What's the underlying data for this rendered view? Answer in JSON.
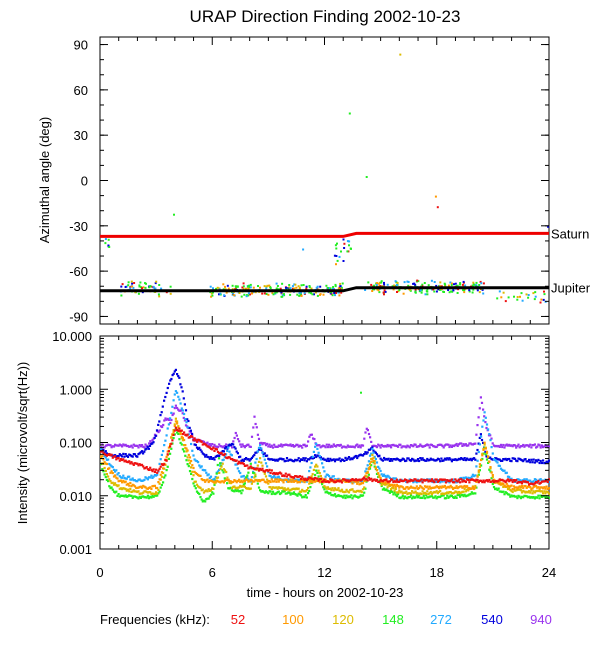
{
  "title": "URAP Direction Finding  2002-10-23",
  "colors": {
    "f52": "#ee1111",
    "f100": "#ff9900",
    "f120": "#ddbb00",
    "f148": "#22ee22",
    "f272": "#22aaff",
    "f540": "#0000dd",
    "f940": "#9933ee",
    "saturn": "#ee0000",
    "jupiter": "#000000"
  },
  "chart_data": [
    {
      "type": "scatter",
      "name": "azimuth",
      "ylabel": "Azimuthal angle (deg)",
      "ylim": [
        -95,
        95
      ],
      "yticks": [
        {
          "v": 90,
          "label": "90"
        },
        {
          "v": 60,
          "label": "60"
        },
        {
          "v": 30,
          "label": "30"
        },
        {
          "v": 0,
          "label": "0"
        },
        {
          "v": -30,
          "label": "-30"
        },
        {
          "v": -60,
          "label": "-60"
        },
        {
          "v": -90,
          "label": "-90"
        }
      ],
      "xlim": [
        0,
        24
      ],
      "reference_lines": [
        {
          "name": "Saturn",
          "color_key": "saturn",
          "points": [
            [
              0,
              -37
            ],
            [
              13,
              -37
            ],
            [
              13.7,
              -35
            ],
            [
              24,
              -35
            ]
          ]
        },
        {
          "name": "Jupiter",
          "color_key": "jupiter",
          "points": [
            [
              0,
              -73
            ],
            [
              13,
              -73
            ],
            [
              13.7,
              -71
            ],
            [
              24,
              -71
            ]
          ]
        }
      ],
      "point_clusters": [
        {
          "x0": 0.2,
          "x1": 0.5,
          "y": -42,
          "spread": 6,
          "n": 6
        },
        {
          "x0": 0.8,
          "x1": 3.8,
          "y": -71,
          "spread": 6,
          "n": 60
        },
        {
          "x0": 5.8,
          "x1": 13.0,
          "y": -72,
          "spread": 5,
          "n": 240
        },
        {
          "x0": 14.0,
          "x1": 20.5,
          "y": -70,
          "spread": 5,
          "n": 220
        },
        {
          "x0": 12.5,
          "x1": 13.5,
          "y": -47,
          "spread": 10,
          "n": 20
        },
        {
          "x0": 21.0,
          "x1": 23.8,
          "y": -76,
          "spread": 5,
          "n": 25
        }
      ],
      "outliers": [
        {
          "x": 3.9,
          "y": -22
        },
        {
          "x": 13.3,
          "y": 45
        },
        {
          "x": 14.2,
          "y": 3
        },
        {
          "x": 16.0,
          "y": 84
        },
        {
          "x": 17.9,
          "y": -10
        },
        {
          "x": 18.0,
          "y": -17
        },
        {
          "x": 10.8,
          "y": -45
        },
        {
          "x": 23.9,
          "y": -30
        }
      ]
    },
    {
      "type": "line",
      "name": "intensity",
      "ylabel": "Intensity (microvolt/sqrt(Hz))",
      "yscale": "log",
      "ylim": [
        0.001,
        10
      ],
      "yticks": [
        {
          "v": 10,
          "label": "10.000"
        },
        {
          "v": 1,
          "label": "1.000"
        },
        {
          "v": 0.1,
          "label": "0.100"
        },
        {
          "v": 0.01,
          "label": "0.010"
        },
        {
          "v": 0.001,
          "label": "0.001"
        }
      ],
      "xlabel": "time - hours on 2002-10-23",
      "xlim": [
        0,
        24
      ],
      "xticks": [
        {
          "v": 0,
          "label": "0"
        },
        {
          "v": 6,
          "label": "6"
        },
        {
          "v": 12,
          "label": "12"
        },
        {
          "v": 18,
          "label": "18"
        },
        {
          "v": 24,
          "label": "24"
        }
      ],
      "series": [
        {
          "name": "940",
          "color_key": "f940",
          "x": [
            0,
            2.5,
            3.2,
            3.5,
            3.7,
            4.0,
            4.3,
            4.6,
            5.0,
            6.0,
            7.0,
            7.2,
            7.5,
            8.0,
            8.2,
            8.5,
            9.0,
            11.0,
            11.2,
            11.6,
            12,
            14,
            14.2,
            14.5,
            18,
            18.5,
            20.0,
            20.3,
            20.6,
            21,
            24
          ],
          "values": [
            0.09,
            0.09,
            0.2,
            0.3,
            0.25,
            0.5,
            0.4,
            0.2,
            0.12,
            0.09,
            0.09,
            0.15,
            0.09,
            0.09,
            0.3,
            0.1,
            0.09,
            0.09,
            0.15,
            0.09,
            0.09,
            0.09,
            0.2,
            0.09,
            0.09,
            0.09,
            0.1,
            0.7,
            0.2,
            0.09,
            0.09
          ]
        },
        {
          "name": "540",
          "color_key": "f540",
          "x": [
            0,
            0.5,
            1,
            2,
            2.8,
            3.3,
            3.7,
            4.0,
            4.3,
            4.6,
            5.0,
            5.5,
            6,
            7,
            7.5,
            8,
            8.5,
            9,
            10,
            11,
            11.5,
            12,
            13,
            14,
            14.5,
            15,
            16,
            17,
            18,
            19,
            20,
            20.3,
            20.6,
            21,
            22,
            24
          ],
          "values": [
            0.08,
            0.06,
            0.06,
            0.06,
            0.1,
            0.5,
            1.5,
            2.5,
            1.2,
            0.3,
            0.1,
            0.06,
            0.05,
            0.1,
            0.05,
            0.05,
            0.08,
            0.05,
            0.05,
            0.05,
            0.06,
            0.05,
            0.05,
            0.06,
            0.08,
            0.05,
            0.05,
            0.05,
            0.05,
            0.05,
            0.05,
            0.15,
            0.06,
            0.05,
            0.05,
            0.045
          ]
        },
        {
          "name": "272",
          "color_key": "f272",
          "x": [
            0,
            0.5,
            1,
            2,
            3,
            3.5,
            4.0,
            4.5,
            5,
            6,
            6.8,
            7.5,
            8,
            8.5,
            9,
            10,
            11,
            11.5,
            12,
            13,
            14,
            14.5,
            15,
            16,
            17,
            18,
            19,
            20,
            20.5,
            21,
            22,
            23,
            24
          ],
          "values": [
            0.08,
            0.04,
            0.025,
            0.02,
            0.025,
            0.15,
            1.0,
            0.3,
            0.05,
            0.02,
            0.08,
            0.025,
            0.02,
            0.1,
            0.025,
            0.02,
            0.02,
            0.1,
            0.025,
            0.02,
            0.02,
            0.08,
            0.025,
            0.02,
            0.02,
            0.02,
            0.02,
            0.025,
            0.4,
            0.05,
            0.02,
            0.02,
            0.02
          ]
        },
        {
          "name": "148",
          "color_key": "f148",
          "x": [
            0,
            0.5,
            1,
            2,
            3,
            3.5,
            4,
            4.5,
            5,
            5.5,
            6,
            6.3,
            6.8,
            7.5,
            8,
            8.5,
            9,
            10,
            11,
            11.5,
            12,
            13,
            14,
            14.5,
            15,
            16,
            17,
            18,
            19,
            20,
            20.5,
            21,
            22,
            24
          ],
          "values": [
            0.04,
            0.015,
            0.01,
            0.01,
            0.01,
            0.03,
            0.2,
            0.06,
            0.015,
            0.008,
            0.012,
            0.05,
            0.015,
            0.012,
            0.04,
            0.013,
            0.012,
            0.012,
            0.01,
            0.03,
            0.012,
            0.01,
            0.01,
            0.05,
            0.015,
            0.01,
            0.01,
            0.01,
            0.01,
            0.012,
            0.08,
            0.015,
            0.01,
            0.01
          ]
        },
        {
          "name": "120",
          "color_key": "f120",
          "x": [
            0,
            0.5,
            1,
            2,
            3,
            3.5,
            4,
            4.5,
            5,
            5.5,
            6,
            6.5,
            7,
            8,
            8.5,
            9,
            10,
            11,
            11.5,
            12,
            13,
            14,
            14.5,
            15,
            16,
            17,
            18,
            19,
            20,
            20.5,
            21,
            22,
            24
          ],
          "values": [
            0.05,
            0.02,
            0.015,
            0.012,
            0.012,
            0.05,
            0.3,
            0.08,
            0.02,
            0.012,
            0.015,
            0.04,
            0.015,
            0.015,
            0.05,
            0.015,
            0.014,
            0.013,
            0.04,
            0.015,
            0.013,
            0.013,
            0.06,
            0.018,
            0.012,
            0.012,
            0.012,
            0.012,
            0.015,
            0.1,
            0.02,
            0.013,
            0.012
          ]
        },
        {
          "name": "100",
          "color_key": "f100",
          "x": [
            0,
            0.5,
            1,
            2,
            3,
            3.5,
            4,
            4.5,
            5,
            5.5,
            6,
            7,
            8,
            9,
            10,
            11,
            12,
            13,
            14,
            14.5,
            15,
            16,
            17,
            18,
            19,
            20,
            20.5,
            21,
            22,
            24
          ],
          "values": [
            0.06,
            0.03,
            0.02,
            0.015,
            0.015,
            0.06,
            0.25,
            0.1,
            0.03,
            0.02,
            0.02,
            0.02,
            0.02,
            0.02,
            0.02,
            0.02,
            0.02,
            0.02,
            0.018,
            0.05,
            0.02,
            0.015,
            0.015,
            0.015,
            0.015,
            0.015,
            0.1,
            0.02,
            0.015,
            0.015
          ]
        },
        {
          "name": "52",
          "color_key": "f52",
          "x": [
            0,
            1,
            2,
            3,
            3.5,
            4,
            4.5,
            5,
            5.5,
            6,
            7,
            8,
            9,
            10,
            11,
            12,
            13,
            14,
            15,
            16,
            17,
            18,
            19,
            20,
            21,
            22,
            23,
            24
          ],
          "values": [
            0.07,
            0.05,
            0.04,
            0.03,
            0.05,
            0.2,
            0.15,
            0.12,
            0.1,
            0.08,
            0.05,
            0.035,
            0.03,
            0.025,
            0.022,
            0.02,
            0.02,
            0.022,
            0.02,
            0.02,
            0.02,
            0.02,
            0.02,
            0.02,
            0.02,
            0.02,
            0.018,
            0.02
          ]
        }
      ]
    }
  ],
  "legend": {
    "label": "Frequencies (kHz):",
    "items": [
      {
        "text": "52",
        "color_key": "f52"
      },
      {
        "text": "100",
        "color_key": "f100"
      },
      {
        "text": "120",
        "color_key": "f120"
      },
      {
        "text": "148",
        "color_key": "f148"
      },
      {
        "text": "272",
        "color_key": "f272"
      },
      {
        "text": "540",
        "color_key": "f540"
      },
      {
        "text": "940",
        "color_key": "f940"
      }
    ]
  }
}
